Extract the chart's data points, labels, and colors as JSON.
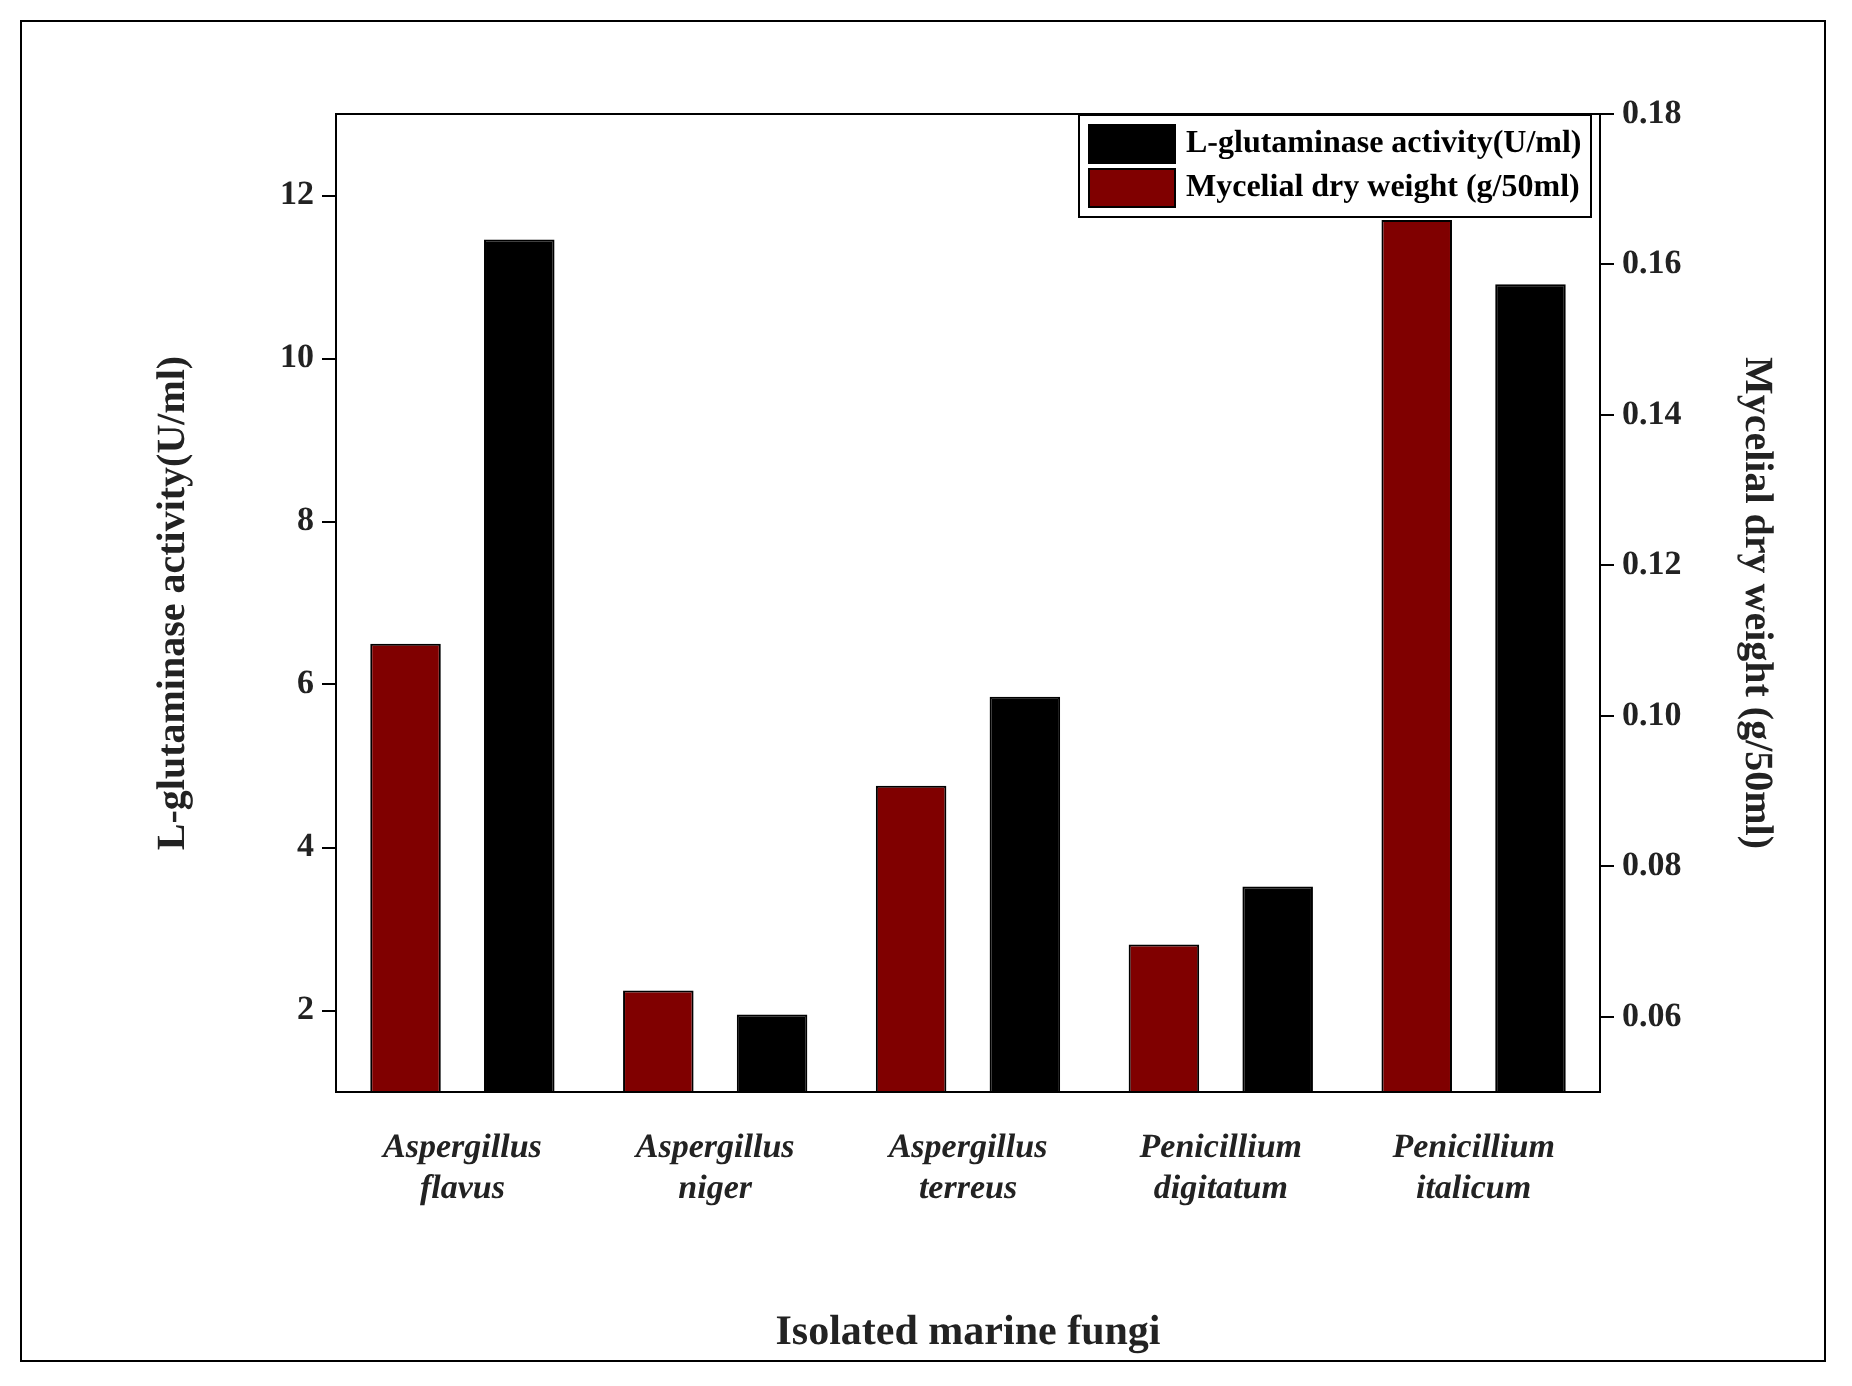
{
  "chart_data": {
    "type": "bar",
    "xlabel": "Isolated marine fungi",
    "ylabel": "L-glutaminase activity(U/ml)",
    "y2label": "Mycelial dry weight (g/50ml)",
    "categories": [
      "Aspergillus flavus",
      "Aspergillus niger",
      "Aspergillus terreus",
      "Penicillium digitatum",
      "Penicillium italicum"
    ],
    "series": [
      {
        "name": "L-glutaminase activity(U/ml)",
        "color": "#000000",
        "values": [
          11.46,
          1.95,
          5.85,
          3.52,
          10.91
        ]
      },
      {
        "name": "Mycelial dry weight (g/50ml)",
        "color": "#800000",
        "axis": "y2",
        "values": [
          0.1096,
          0.0635,
          0.0907,
          0.0696,
          0.1659
        ]
      }
    ],
    "ylim": [
      1,
      13
    ],
    "yticks": [
      2,
      4,
      6,
      8,
      10,
      12
    ],
    "y2lim": [
      0.05,
      0.18
    ],
    "y2ticks": [
      {
        "value": 0.06,
        "label": "0.06"
      },
      {
        "value": 0.08,
        "label": "0.08"
      },
      {
        "value": 0.1,
        "label": "0.10"
      },
      {
        "value": 0.12,
        "label": "0.12"
      },
      {
        "value": 0.14,
        "label": "0.14"
      },
      {
        "value": 0.16,
        "label": "0.16"
      },
      {
        "value": 0.18,
        "label": "0.18"
      }
    ],
    "legend": "top right",
    "grid": false
  }
}
